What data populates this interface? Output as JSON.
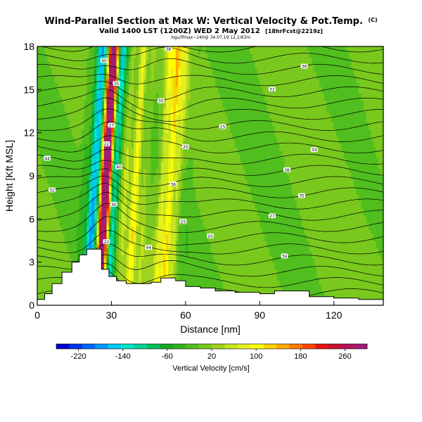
{
  "header": {
    "title": "Wind-Parallel Section at Max W: Vertical Velocity & Pot.Temp.",
    "title_mark": "(C)",
    "valid_line_main": "Valid 1400 LST (1200Z) WED 2 May 2012",
    "valid_line_tag": "[18hrFcst@2219z]",
    "small_line": "bgu/lfmax~240@ 34.07,19 12,1/63m"
  },
  "chart_data": {
    "type": "heatmap",
    "xlabel": "Distance [nm]",
    "ylabel": "Height [Kft MSL]",
    "xlim": [
      0,
      140
    ],
    "ylim": [
      0,
      18
    ],
    "x_ticks": [
      0,
      30,
      60,
      90,
      120
    ],
    "y_ticks": [
      0,
      3,
      6,
      9,
      12,
      15,
      18
    ],
    "colorbar": {
      "label": "Vertical Velocity [cm/s]",
      "ticks": [
        "-220",
        "-140",
        "-60",
        "20",
        "100",
        "180",
        "260"
      ],
      "range": [
        -260,
        300
      ],
      "colors": [
        "#0000cc",
        "#0033e6",
        "#0066ff",
        "#0099ff",
        "#00c8f0",
        "#00e6c8",
        "#00d296",
        "#00be5a",
        "#14aa28",
        "#32b41e",
        "#50be1e",
        "#78c81e",
        "#a0d21e",
        "#c8e61e",
        "#e6f01e",
        "#ffff00",
        "#ffd200",
        "#ffaa00",
        "#ff7800",
        "#ff4600",
        "#e61414",
        "#c81432",
        "#b4145a",
        "#a01e78"
      ]
    },
    "wind_columns": [
      {
        "x": 19,
        "w": -30
      },
      {
        "x": 22,
        "w": -80
      },
      {
        "x": 23.5,
        "w": -110
      },
      {
        "x": 25,
        "w": -80
      },
      {
        "x": 26.5,
        "w": 140
      },
      {
        "x": 28,
        "w": 240
      },
      {
        "x": 29.5,
        "w": 120
      },
      {
        "x": 31,
        "w": -120
      },
      {
        "x": 32.5,
        "w": -60
      },
      {
        "x": 36,
        "w": 40
      },
      {
        "x": 40,
        "w": 100
      },
      {
        "x": 44,
        "w": 30
      },
      {
        "x": 48,
        "w": 10
      },
      {
        "x": 51,
        "w": 80
      },
      {
        "x": 54,
        "w": 120
      },
      {
        "x": 57,
        "w": 60
      },
      {
        "x": 62,
        "w": -10
      }
    ],
    "isentropes_theta_K": [
      20,
      21,
      22,
      23,
      24,
      25,
      26,
      27,
      28,
      29,
      30,
      31,
      32,
      33,
      34,
      35,
      36,
      37,
      38,
      39,
      40,
      41,
      42
    ],
    "isentrope_labels": [
      "40",
      "38",
      "36",
      "35",
      "32",
      "30",
      "27",
      "25",
      "22",
      "20",
      "34",
      "44"
    ],
    "terrain_kft": [
      [
        0,
        0.4
      ],
      [
        3,
        0.8
      ],
      [
        6,
        1.5
      ],
      [
        10,
        2.3
      ],
      [
        14,
        3.0
      ],
      [
        17,
        3.5
      ],
      [
        20,
        3.9
      ],
      [
        23,
        3.9
      ],
      [
        26,
        2.5
      ],
      [
        29,
        2.0
      ],
      [
        32,
        1.7
      ],
      [
        36,
        1.5
      ],
      [
        40,
        1.5
      ],
      [
        46,
        1.6
      ],
      [
        50,
        1.9
      ],
      [
        56,
        1.7
      ],
      [
        60,
        1.3
      ],
      [
        66,
        1.2
      ],
      [
        72,
        1.0
      ],
      [
        80,
        0.9
      ],
      [
        90,
        0.8
      ],
      [
        96,
        1.0
      ],
      [
        100,
        1.0
      ],
      [
        104,
        1.0
      ],
      [
        110,
        0.6
      ],
      [
        120,
        0.5
      ],
      [
        130,
        0.4
      ],
      [
        140,
        0.5
      ]
    ]
  }
}
